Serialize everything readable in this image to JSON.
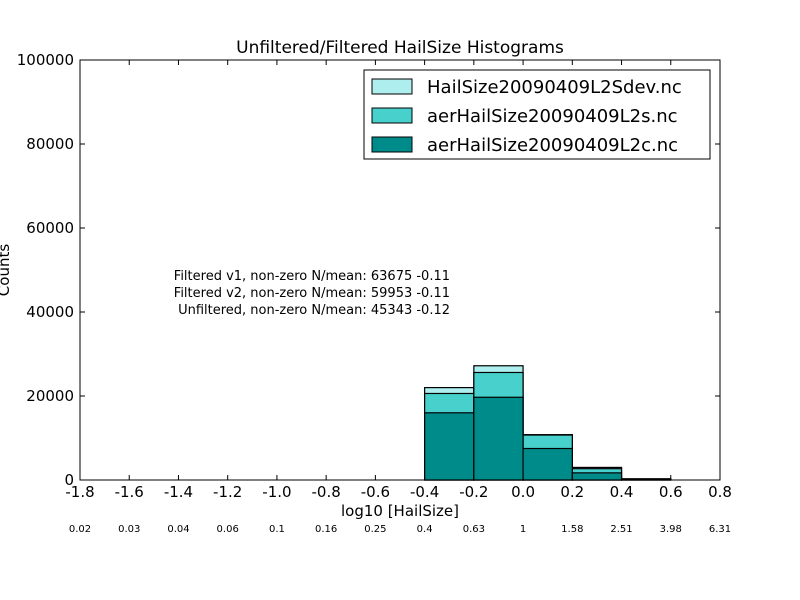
{
  "chart_data": {
    "type": "bar",
    "title": "Unfiltered/Filtered HailSize Histograms",
    "xlabel": "log10 [HailSize]",
    "ylabel": "Counts",
    "xlim": [
      -1.8,
      0.8
    ],
    "ylim": [
      0,
      100000
    ],
    "xticks": [
      "-1.8",
      "-1.6",
      "-1.4",
      "-1.2",
      "-1.0",
      "-0.8",
      "-0.6",
      "-0.4",
      "-0.2",
      "0.0",
      "0.2",
      "0.4",
      "0.6",
      "0.8"
    ],
    "yticks": [
      "0",
      "20000",
      "40000",
      "60000",
      "80000",
      "100000"
    ],
    "secondary_ticks": [
      "0.02",
      "0.03",
      "0.04",
      "0.06",
      "0.1",
      "0.16",
      "0.25",
      "0.4",
      "0.63",
      "1",
      "1.58",
      "2.51",
      "3.98",
      "6.31"
    ],
    "bin_edges": [
      -0.4,
      -0.2,
      0.0,
      0.2,
      0.4,
      0.6
    ],
    "series": [
      {
        "name": "HailSize20090409L2Sdev.nc",
        "color": "#afeeee",
        "values": [
          22000,
          27200,
          10800,
          3000,
          300
        ]
      },
      {
        "name": "aerHailSize20090409L2s.nc",
        "color": "#48d1cc",
        "values": [
          20600,
          25600,
          10700,
          2700,
          200
        ]
      },
      {
        "name": "aerHailSize20090409L2c.nc",
        "color": "#008b8b",
        "values": [
          16000,
          19700,
          7500,
          1700,
          100
        ]
      }
    ],
    "annotations": [
      "Filtered v1, non-zero N/mean: 63675 -0.11",
      "Filtered v2, non-zero N/mean: 59953 -0.11",
      "Unfiltered, non-zero N/mean: 45343 -0.12"
    ],
    "legend_position": "top-right",
    "grid": false
  }
}
